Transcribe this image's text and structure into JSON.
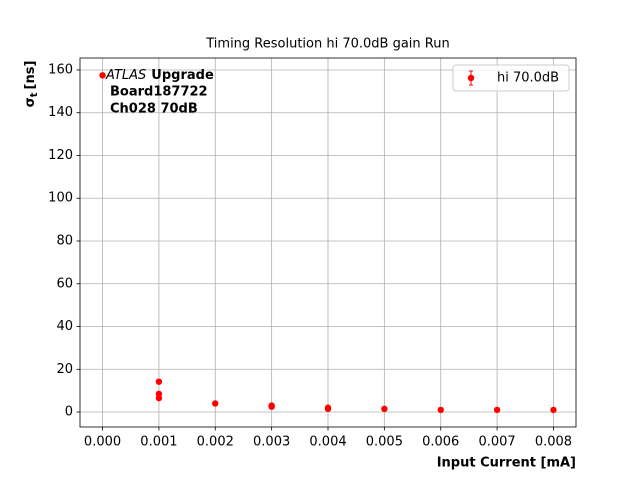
{
  "chart_data": {
    "type": "scatter",
    "title": "Timing Resolution hi 70.0dB gain Run",
    "xlabel": "Input Current [mA]",
    "ylabel_symbol": "σ",
    "ylabel_subscript": "t",
    "ylabel_unit": "[ns]",
    "annotation": {
      "experiment": "ATLAS",
      "tag": "Upgrade",
      "board": "Board187722",
      "channel": "Ch028 70dB"
    },
    "series": [
      {
        "name": "hi 70.0dB",
        "color": "#ff0000",
        "x": [
          0.0,
          0.001,
          0.001,
          0.001,
          0.002,
          0.003,
          0.003,
          0.004,
          0.004,
          0.005,
          0.006,
          0.007,
          0.008
        ],
        "values": [
          157.5,
          14.2,
          8.5,
          6.5,
          4.0,
          3.0,
          2.5,
          2.0,
          1.5,
          1.5,
          1.0,
          1.0,
          1.0
        ]
      }
    ],
    "xlim": [
      -0.0004,
      0.0084
    ],
    "ylim": [
      -7,
      165.6
    ],
    "xticks": [
      {
        "value": 0.0,
        "label": "0.000"
      },
      {
        "value": 0.001,
        "label": "0.001"
      },
      {
        "value": 0.002,
        "label": "0.002"
      },
      {
        "value": 0.003,
        "label": "0.003"
      },
      {
        "value": 0.004,
        "label": "0.004"
      },
      {
        "value": 0.005,
        "label": "0.005"
      },
      {
        "value": 0.006,
        "label": "0.006"
      },
      {
        "value": 0.007,
        "label": "0.007"
      },
      {
        "value": 0.008,
        "label": "0.008"
      }
    ],
    "yticks": [
      0,
      20,
      40,
      60,
      80,
      100,
      120,
      140,
      160
    ],
    "grid": true,
    "legend_position": "upper-right"
  }
}
